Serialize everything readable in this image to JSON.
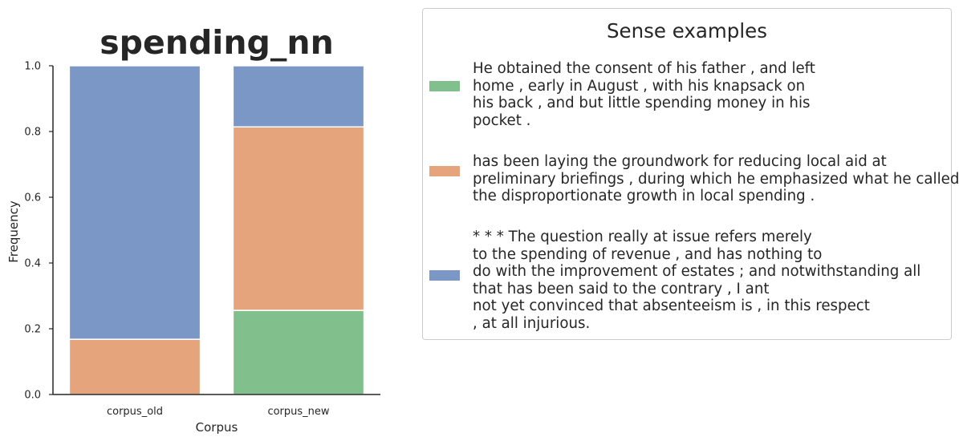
{
  "chart_data": {
    "type": "bar",
    "stacked": true,
    "title": "spending_nn",
    "xlabel": "Corpus",
    "ylabel": "Frequency",
    "ylim": [
      0,
      1.0
    ],
    "yticks": [
      "0.0",
      "0.2",
      "0.4",
      "0.6",
      "0.8",
      "1.0"
    ],
    "categories": [
      "corpus_old",
      "corpus_new"
    ],
    "series": [
      {
        "color": "#81c08d",
        "values": [
          0.0,
          0.256
        ]
      },
      {
        "color": "#e5a47c",
        "values": [
          0.168,
          0.558
        ]
      },
      {
        "color": "#7b97c5",
        "values": [
          0.832,
          0.186
        ]
      }
    ],
    "grid": false,
    "legend": {
      "placement": "right",
      "title": "Sense examples",
      "entries": [
        {
          "color": "#81c08d",
          "text": "He obtained the consent of his father , and left\nhome , early in August , with his knapsack on\nhis back , and but little spending money in his\npocket ."
        },
        {
          "color": "#e5a47c",
          "text": "has been laying the groundwork for reducing local aid at\npreliminary briefings , during which he emphasized what he called\nthe disproportionate growth in local spending ."
        },
        {
          "color": "#7b97c5",
          "text": "* * * The question really at issue refers merely\nto the spending of revenue , and has nothing to\ndo with the improvement of estates ; and notwithstanding all\nthat has been said to the contrary , I ant\nnot yet convinced that absenteeism is , in this respect\n, at all injurious."
        }
      ]
    }
  }
}
